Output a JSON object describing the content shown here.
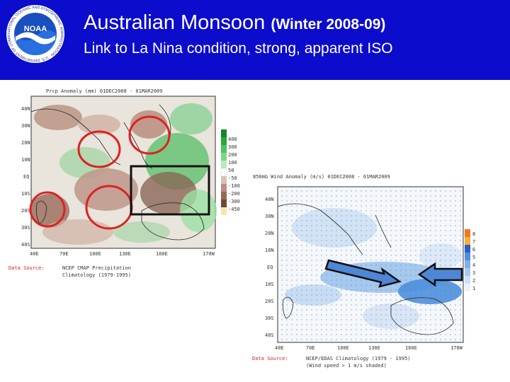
{
  "header": {
    "title": "Australian Monsoon",
    "title_suffix": "(Winter 2008-09)",
    "subtitle": "Link to La Nina condition, strong, apparent ISO",
    "background": "#0c0ccc",
    "logo_text": "NOAA",
    "logo_ring_text": "NATIONAL OCEANIC AND ATMOSPHERIC ADMINISTRATION · U.S. DEPARTMENT OF COMMERCE"
  },
  "left_map": {
    "map_title": "Prcp Anomaly (mm) 01DEC2008 - 01MAR2009",
    "lat_labels": [
      "40N",
      "30N",
      "20N",
      "10N",
      "EQ",
      "10S",
      "20S",
      "30S",
      "40S"
    ],
    "lon_labels": [
      "40E",
      "70E",
      "100E",
      "130E",
      "160E",
      "170W"
    ],
    "legend_values": [
      "400",
      "300",
      "200",
      "100",
      "50",
      "-50",
      "-100",
      "-200",
      "-300",
      "-450"
    ],
    "source_label": "Data Source:",
    "source_text": "NCEP CMAP Precipitation",
    "source_text2": "Climatology (1979-1995)",
    "annotation_colors": {
      "circle": "#dd2222",
      "box": "#111111"
    }
  },
  "right_map": {
    "map_title": "850mb Wind Anomaly (m/s) 01DEC2008 - 01MAR2009",
    "lat_labels": [
      "40N",
      "30N",
      "20N",
      "10N",
      "EQ",
      "10S",
      "20S",
      "30S",
      "40S"
    ],
    "lon_labels": [
      "40E",
      "70E",
      "100E",
      "130E",
      "160E",
      "170W"
    ],
    "legend_values": [
      "8",
      "7",
      "6",
      "5",
      "4",
      "3",
      "2",
      "1"
    ],
    "source_label": "Data Source:",
    "source_text": "NCEP/EDAS Climatology (1979 - 1995)",
    "source_text2": "(Wind speed > 1 m/s shaded)"
  }
}
